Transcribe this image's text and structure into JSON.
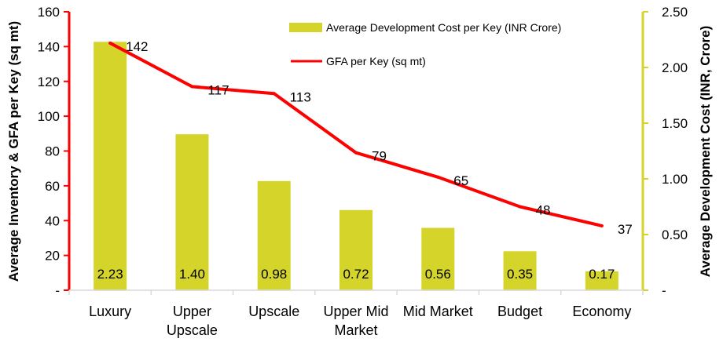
{
  "chart_data": {
    "type": "bar",
    "categories": [
      [
        "Luxury"
      ],
      [
        "Upper",
        "Upscale"
      ],
      [
        "Upscale"
      ],
      [
        "Upper Mid",
        "Market"
      ],
      [
        "Mid Market"
      ],
      [
        "Budget"
      ],
      [
        "Economy"
      ]
    ],
    "series": [
      {
        "name": "Average Development Cost per Key (INR Crore)",
        "type": "bar",
        "axis": "right",
        "color": "#d4d42a",
        "values": [
          2.23,
          1.4,
          0.98,
          0.72,
          0.56,
          0.35,
          0.17
        ],
        "labels": [
          "2.23",
          "1.40",
          "0.98",
          "0.72",
          "0.56",
          "0.35",
          "0.17"
        ]
      },
      {
        "name": "GFA per Key (sq mt)",
        "type": "line",
        "axis": "left",
        "color": "#ff0000",
        "values": [
          142,
          117,
          113,
          79,
          65,
          48,
          37
        ],
        "labels": [
          "142",
          "117",
          "113",
          "79",
          "65",
          "48",
          "37"
        ]
      }
    ],
    "left_axis": {
      "title": "Average Inventory  & GFA per Key (sq mt)",
      "range": [
        0,
        160
      ],
      "ticks": [
        0,
        20,
        40,
        60,
        80,
        100,
        120,
        140,
        160
      ],
      "tick_labels": [
        "-",
        "20",
        "40",
        "60",
        "80",
        "100",
        "120",
        "140",
        "160"
      ],
      "color": "#ff0000"
    },
    "right_axis": {
      "title": "Average Development Cost (INR, Crore)",
      "range": [
        0,
        2.5
      ],
      "ticks": [
        0,
        0.5,
        1.0,
        1.5,
        2.0,
        2.5
      ],
      "tick_labels": [
        "-",
        "0.50",
        "1.00",
        "1.50",
        "2.00",
        "2.50"
      ],
      "color": "#d4d42a"
    },
    "grid": false,
    "legend": "top-right"
  }
}
